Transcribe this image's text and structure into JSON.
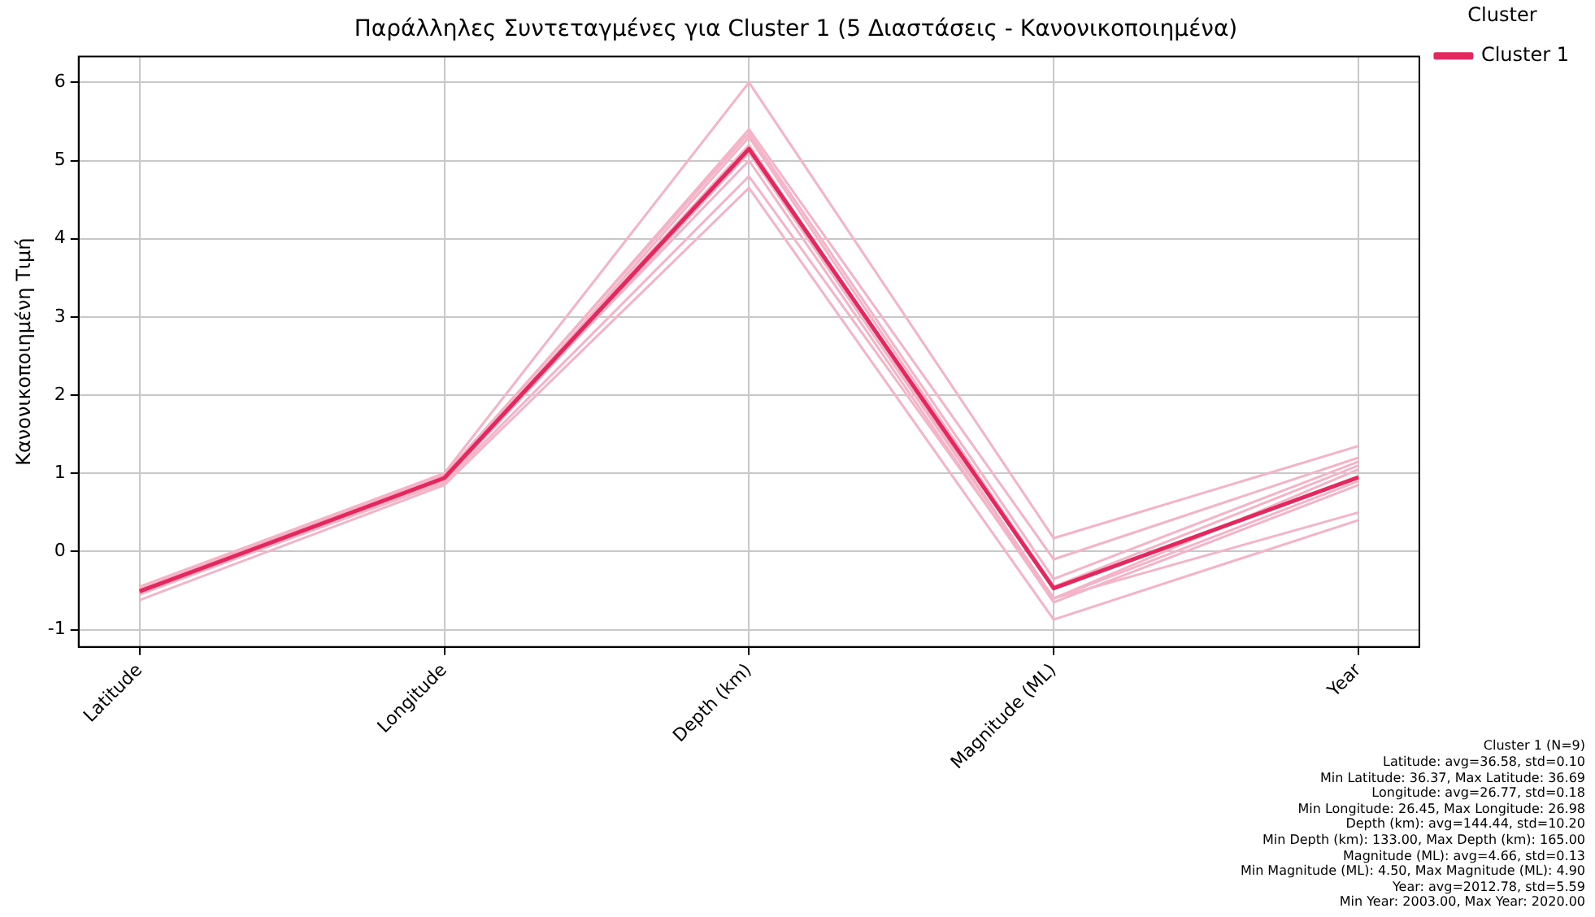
{
  "chart_data": {
    "type": "line",
    "title": "Παράλληλες Συντεταγμένες για Cluster 1 (5 Διαστάσεις - Κανονικοποιημένα)",
    "ylabel": "Κανονικοποιημένη Τιμή",
    "legend_title": "Cluster",
    "categories": [
      "Latitude",
      "Longitude",
      "Depth (km)",
      "Magnitude (ML)",
      "Year"
    ],
    "series": [
      {
        "color": "#f4b3c6",
        "values": [
          -0.45,
          1.0,
          6.0,
          0.17,
          1.35
        ]
      },
      {
        "color": "#f4b3c6",
        "values": [
          -0.5,
          0.95,
          5.4,
          -0.1,
          1.2
        ]
      },
      {
        "color": "#f4b3c6",
        "values": [
          -0.48,
          0.98,
          5.35,
          -0.35,
          1.15
        ]
      },
      {
        "color": "#f4b3c6",
        "values": [
          -0.52,
          0.92,
          5.3,
          -0.45,
          1.1
        ]
      },
      {
        "color": "#f4b3c6",
        "values": [
          -0.5,
          0.95,
          5.2,
          -0.6,
          1.05
        ]
      },
      {
        "color": "#f4b3c6",
        "values": [
          -0.55,
          0.9,
          5.1,
          -0.6,
          0.9
        ]
      },
      {
        "color": "#f4b3c6",
        "values": [
          -0.5,
          0.97,
          5.0,
          -0.65,
          0.85
        ]
      },
      {
        "color": "#f4b3c6",
        "values": [
          -0.53,
          0.88,
          4.8,
          -0.6,
          0.5
        ]
      },
      {
        "color": "#f4b3c6",
        "values": [
          -0.62,
          0.85,
          4.65,
          -0.87,
          0.4
        ]
      },
      {
        "name": "Cluster 1",
        "color": "#e3285e",
        "values": [
          -0.51,
          0.94,
          5.15,
          -0.47,
          0.95
        ]
      }
    ],
    "ylim": [
      -1.22,
      6.33
    ],
    "yticks": [
      -1,
      0,
      1,
      2,
      3,
      4,
      5,
      6
    ],
    "grid": true,
    "legend": "top right",
    "marker": "none",
    "line_style": "solid",
    "annotations": [
      "Cluster 1 (N=9)",
      "Latitude: avg=36.58, std=0.10",
      "Min Latitude: 36.37, Max Latitude: 36.69",
      "Longitude: avg=26.77, std=0.18",
      "Min Longitude: 26.45, Max Longitude: 26.98",
      "Depth (km): avg=144.44, std=10.20",
      "Min Depth (km): 133.00, Max Depth (km): 165.00",
      "Magnitude (ML): avg=4.66, std=0.13",
      "Min Magnitude (ML): 4.50, Max Magnitude (ML): 4.90",
      "Year: avg=2012.78, std=5.59",
      "Min Year: 2003.00, Max Year: 2020.00"
    ]
  }
}
